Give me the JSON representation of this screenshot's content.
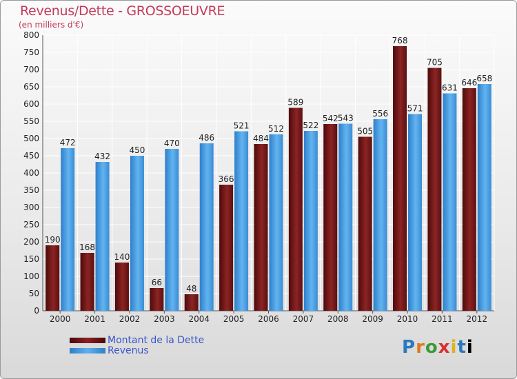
{
  "title": "Revenus/Dette - GROSSOEUVRE",
  "subtitle": "(en milliers d'€)",
  "logo": [
    "P",
    "r",
    "o",
    "x",
    "i",
    "t",
    "i"
  ],
  "colors": {
    "dette_dark": "#4e0a0a",
    "dette_light": "#8c2424",
    "revenus_dark": "#2e7fca",
    "revenus_light": "#62b4f0",
    "axis_text": "#222222",
    "title": "#c4395a",
    "legend_text": "#3a55c8"
  },
  "chart_data": {
    "type": "bar",
    "title": "Revenus/Dette - GROSSOEUVRE",
    "subtitle": "(en milliers d'€)",
    "xlabel": "",
    "ylabel": "",
    "ylim": [
      0,
      800
    ],
    "yticks": [
      0,
      50,
      100,
      150,
      200,
      250,
      300,
      350,
      400,
      450,
      500,
      550,
      600,
      650,
      700,
      750,
      800
    ],
    "grid": true,
    "legend_position": "bottom-left",
    "categories": [
      "2000",
      "2001",
      "2002",
      "2003",
      "2004",
      "2005",
      "2006",
      "2007",
      "2008",
      "2009",
      "2010",
      "2011",
      "2012"
    ],
    "series": [
      {
        "name": "Montant de la Dette",
        "values": [
          190,
          168,
          140,
          66,
          48,
          366,
          484,
          589,
          542,
          505,
          768,
          705,
          646
        ]
      },
      {
        "name": "Revenus",
        "values": [
          472,
          432,
          450,
          470,
          486,
          521,
          512,
          522,
          543,
          556,
          571,
          631,
          658
        ]
      }
    ]
  }
}
